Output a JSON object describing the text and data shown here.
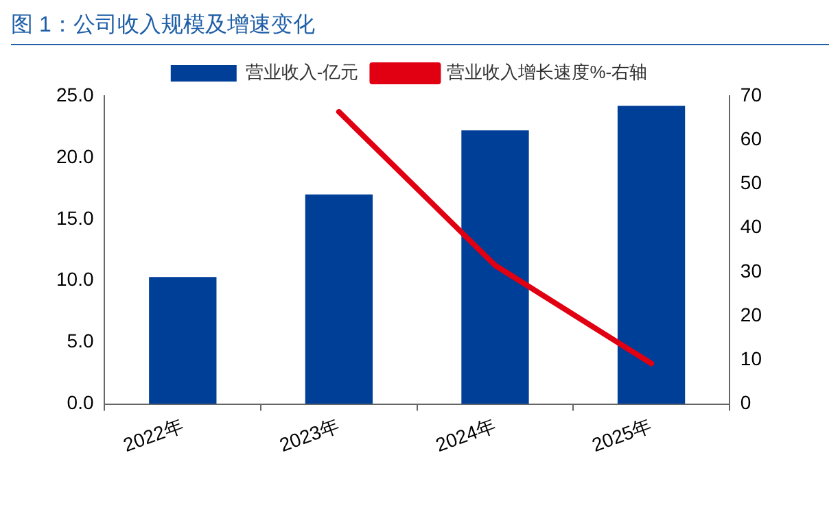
{
  "chart_data": {
    "type": "bar",
    "title": "图 1：公司收入规模及增速变化",
    "categories": [
      "2022年",
      "2023年",
      "2024年",
      "2025年"
    ],
    "series": [
      {
        "name": "营业收入-亿元",
        "color": "#003f98",
        "values": [
          10.3,
          17.0,
          22.2,
          24.2
        ]
      },
      {
        "name": "营业收入增长速度%-右轴",
        "type": "line",
        "axis": "y2",
        "color": "#e00012",
        "values": [
          null,
          66.4,
          31.5,
          9.2
        ]
      }
    ],
    "ylim": [
      0,
      25
    ],
    "yticks": [
      {
        "value": 0,
        "label": "0.0"
      },
      {
        "value": 5,
        "label": "5.0"
      },
      {
        "value": 10,
        "label": "10.0"
      },
      {
        "value": 15,
        "label": "15.0"
      },
      {
        "value": 20,
        "label": "20.0"
      },
      {
        "value": 25,
        "label": "25.0"
      }
    ],
    "y2lim": [
      0,
      70
    ],
    "y2ticks": [
      0,
      10,
      20,
      30,
      40,
      50,
      60,
      70
    ],
    "grid": false,
    "legend": "top",
    "marker": "none"
  }
}
